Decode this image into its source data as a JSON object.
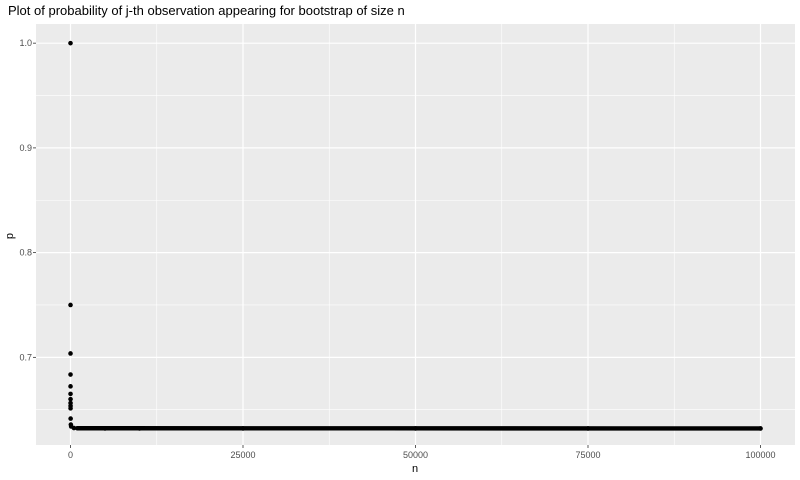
{
  "chart_data": {
    "type": "scatter",
    "title": "Plot of probability of j-th observation appearing for bootstrap of size n",
    "xlabel": "n",
    "ylabel": "p",
    "x_ticks": [
      0,
      25000,
      50000,
      75000,
      100000
    ],
    "x_tick_labels": [
      "0",
      "25000",
      "50000",
      "75000",
      "100000"
    ],
    "y_ticks": [
      0.7,
      0.8,
      0.9,
      1.0
    ],
    "y_tick_labels": [
      "0.7",
      "0.8",
      "0.9",
      "1.0"
    ],
    "xlim": [
      -5000,
      105000
    ],
    "ylim": [
      0.6163,
      1.0183
    ],
    "grid": true,
    "legend": "none",
    "series": [
      {
        "x": [
          1,
          2,
          3,
          4,
          5,
          6,
          7,
          8,
          9,
          10,
          20,
          50,
          100,
          500,
          1000,
          5000,
          10000,
          25000,
          50000,
          75000,
          100000
        ],
        "y": [
          1.0,
          0.75,
          0.7037,
          0.6836,
          0.6723,
          0.6651,
          0.6601,
          0.6564,
          0.6536,
          0.6513,
          0.6415,
          0.6358,
          0.634,
          0.6325,
          0.6323,
          0.6321,
          0.6321,
          0.6321,
          0.6321,
          0.6321,
          0.6321
        ]
      }
    ],
    "colors": {
      "panel": "#ebebeb",
      "grid_major": "#ffffff",
      "point": "#000000",
      "tick_text": "#4d4d4d"
    }
  }
}
